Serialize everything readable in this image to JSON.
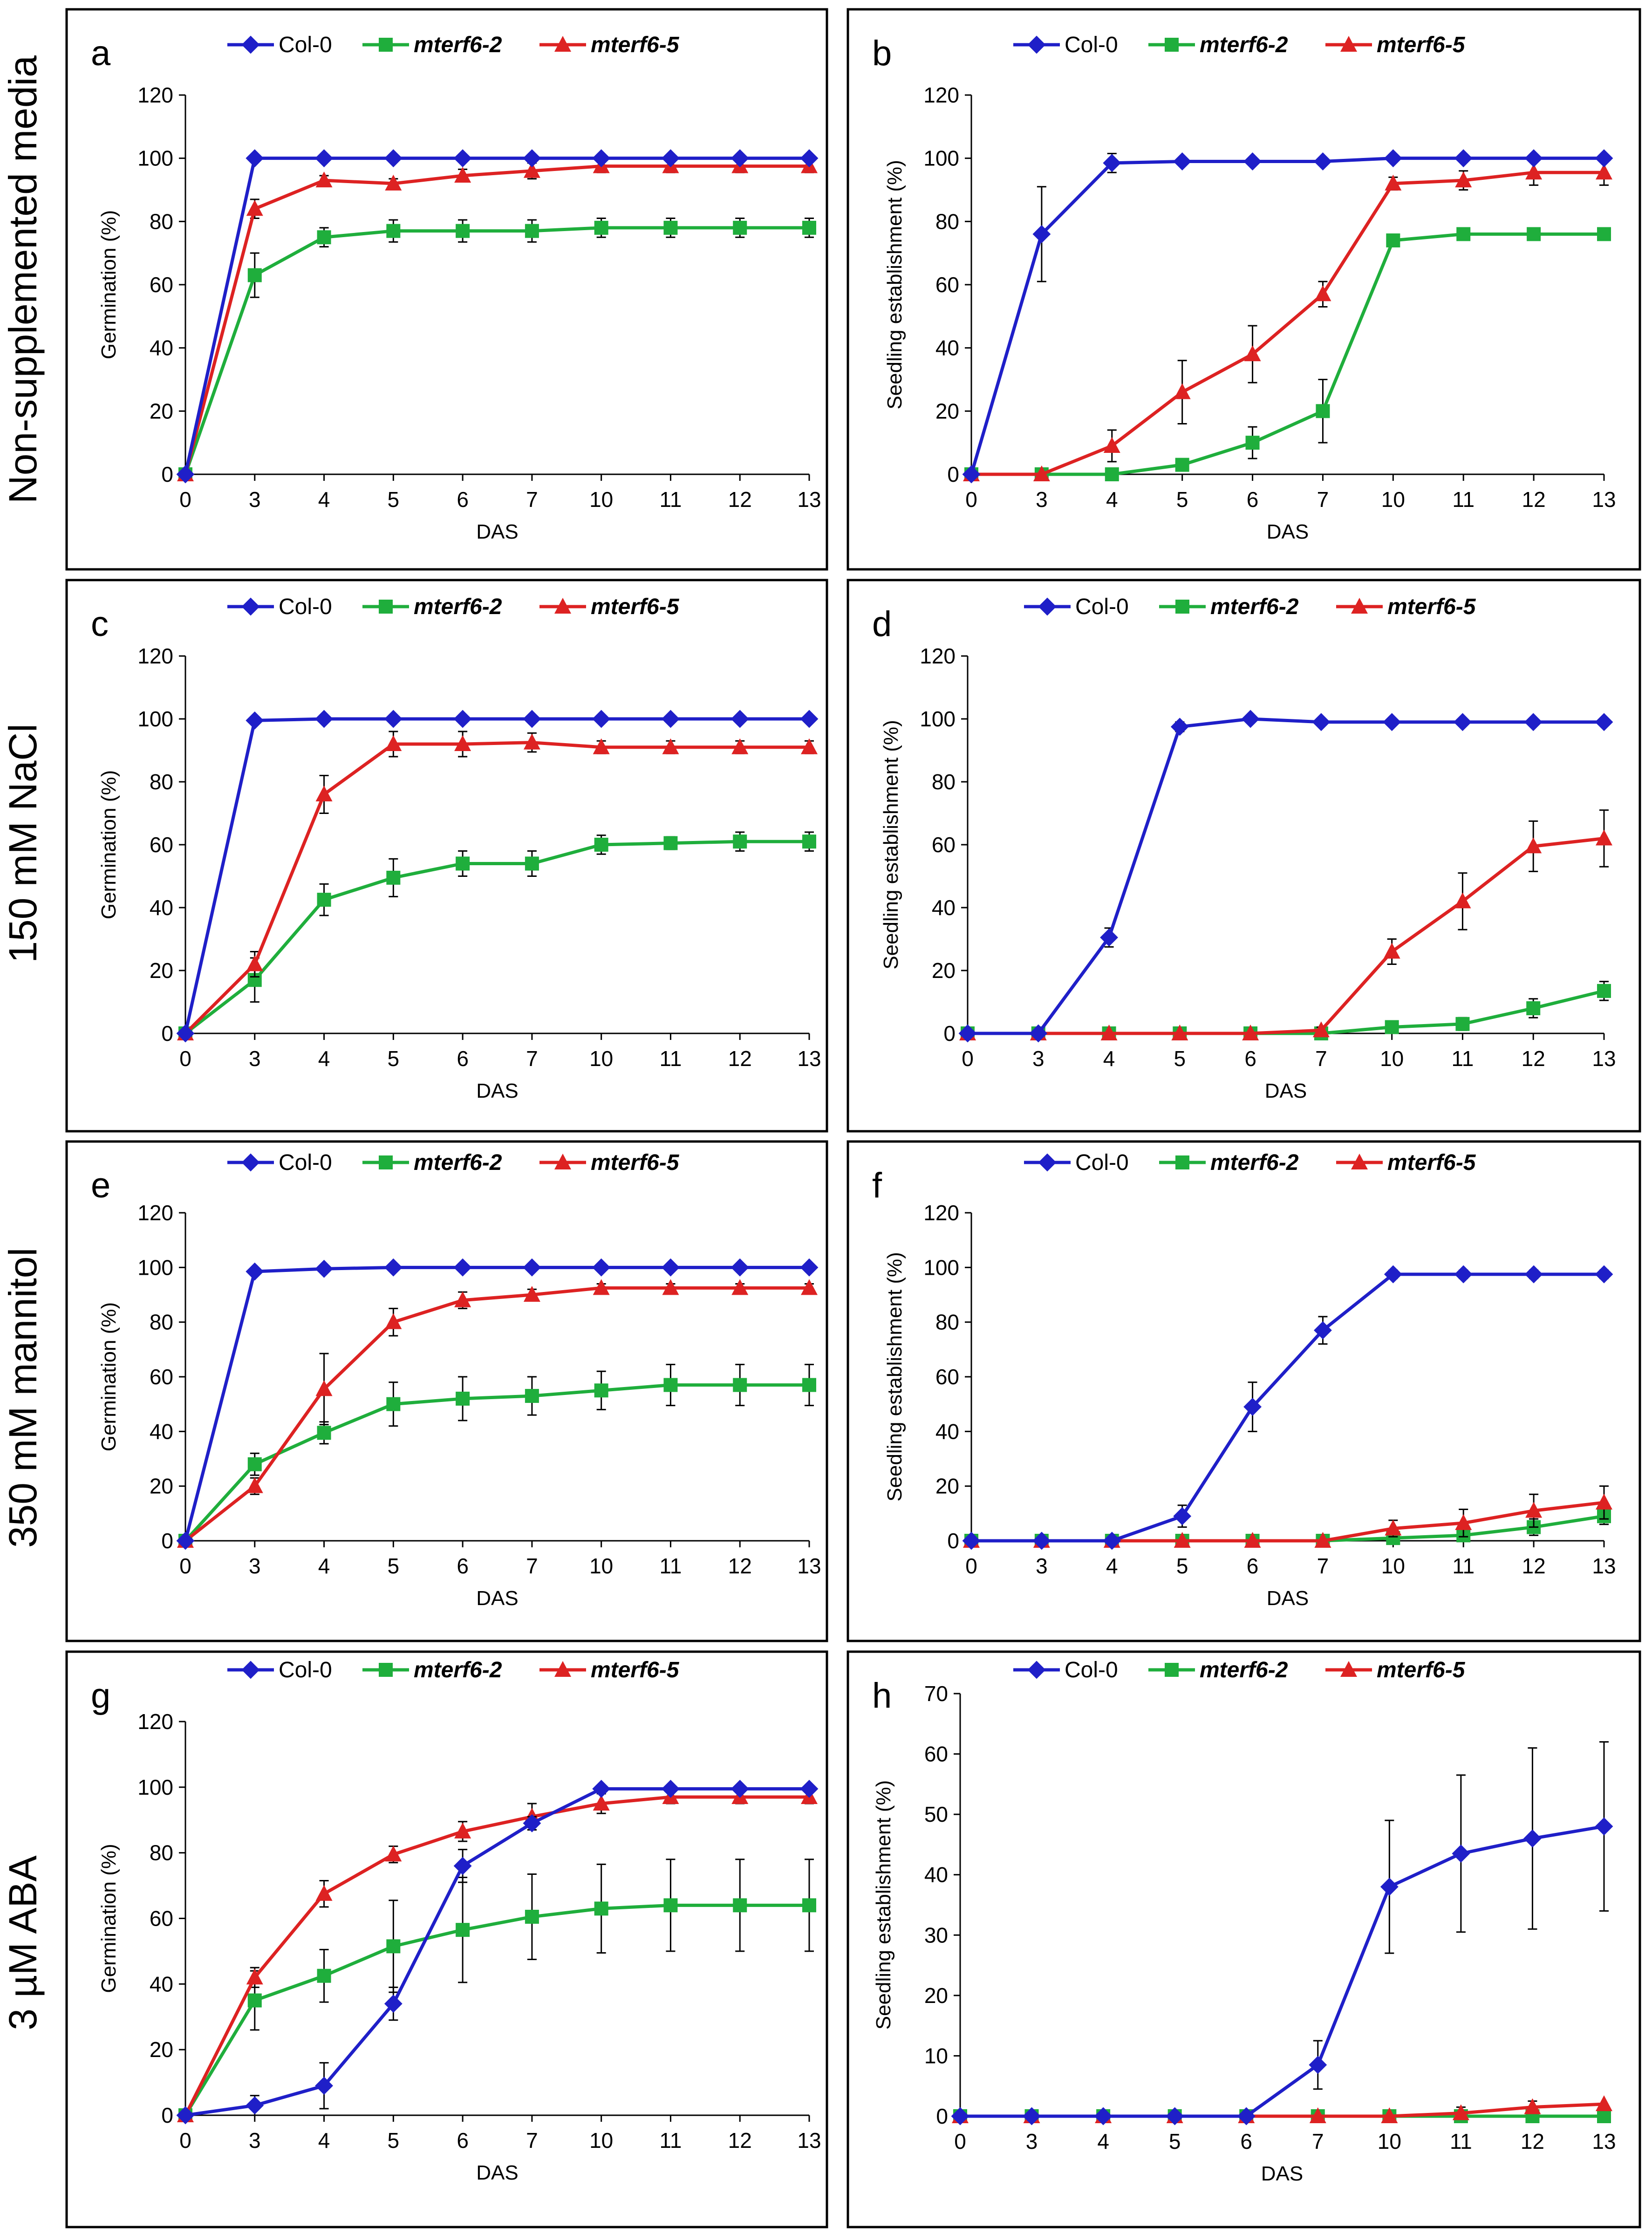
{
  "row_labels": [
    "Non-supplemented media",
    "150 mM NaCl",
    "350 mM mannitol",
    "3 µM ABA"
  ],
  "legend": [
    {
      "name": "Col-0",
      "color": "#1f1fc8",
      "marker": "diamond",
      "italic": false
    },
    {
      "name": "mterf6-2",
      "color": "#1fae3c",
      "marker": "square",
      "italic": true
    },
    {
      "name": "mterf6-5",
      "color": "#dd2222",
      "marker": "triangle",
      "italic": true
    }
  ],
  "chart_data": [
    {
      "panel": "a",
      "type": "line",
      "xlabel": "DAS",
      "ylabel": "Germination (%)",
      "categories": [
        "0",
        "3",
        "4",
        "5",
        "6",
        "7",
        "10",
        "11",
        "12",
        "13"
      ],
      "ylim": [
        0,
        120
      ],
      "yticks": [
        0,
        20,
        40,
        60,
        80,
        100,
        120
      ],
      "series": [
        {
          "name": "Col-0",
          "values": [
            0,
            100,
            100,
            100,
            100,
            100,
            100,
            100,
            100,
            100
          ],
          "errors": [
            0,
            0,
            0,
            0,
            0,
            0,
            0,
            0,
            0,
            0
          ]
        },
        {
          "name": "mterf6-2",
          "values": [
            0,
            63,
            75,
            77,
            77,
            77,
            78,
            78,
            78,
            78
          ],
          "errors": [
            0,
            7,
            3,
            3.5,
            3.5,
            3.5,
            3,
            3,
            3,
            3
          ]
        },
        {
          "name": "mterf6-5",
          "values": [
            0,
            84,
            93,
            92,
            94.5,
            96,
            97.5,
            97.5,
            97.5,
            97.5
          ],
          "errors": [
            0,
            3,
            1.5,
            1.5,
            2,
            2.5,
            2,
            2,
            2,
            2
          ]
        }
      ]
    },
    {
      "panel": "b",
      "type": "line",
      "xlabel": "DAS",
      "ylabel": "Seedling establishment (%)",
      "categories": [
        "0",
        "3",
        "4",
        "5",
        "6",
        "7",
        "10",
        "11",
        "12",
        "13"
      ],
      "ylim": [
        0,
        120
      ],
      "yticks": [
        0,
        20,
        40,
        60,
        80,
        100,
        120
      ],
      "series": [
        {
          "name": "Col-0",
          "values": [
            0,
            76,
            98.5,
            99,
            99,
            99,
            100,
            100,
            100,
            100
          ],
          "errors": [
            0,
            15,
            3,
            0,
            0,
            0,
            0,
            0,
            0,
            0
          ]
        },
        {
          "name": "mterf6-2",
          "values": [
            0,
            0,
            0,
            3,
            10,
            20,
            74,
            76,
            76,
            76
          ],
          "errors": [
            0,
            0,
            0,
            0,
            5,
            10,
            0,
            0,
            0,
            0
          ]
        },
        {
          "name": "mterf6-5",
          "values": [
            0,
            0,
            9,
            26,
            38,
            57,
            92,
            93,
            95.5,
            95.5
          ],
          "errors": [
            0,
            0,
            5,
            10,
            9,
            4,
            2,
            3,
            4,
            4
          ]
        }
      ]
    },
    {
      "panel": "c",
      "type": "line",
      "xlabel": "DAS",
      "ylabel": "Germination (%)",
      "categories": [
        "0",
        "3",
        "4",
        "5",
        "6",
        "7",
        "10",
        "11",
        "12",
        "13"
      ],
      "ylim": [
        0,
        120
      ],
      "yticks": [
        0,
        20,
        40,
        60,
        80,
        100,
        120
      ],
      "series": [
        {
          "name": "Col-0",
          "values": [
            0,
            99.5,
            100,
            100,
            100,
            100,
            100,
            100,
            100,
            100
          ],
          "errors": [
            0,
            0,
            0,
            0,
            0,
            0,
            0,
            0,
            0,
            0
          ]
        },
        {
          "name": "mterf6-2",
          "values": [
            0,
            17,
            42.5,
            49.5,
            54,
            54,
            60,
            60.5,
            61,
            61
          ],
          "errors": [
            0,
            7,
            5,
            6,
            4,
            4,
            3,
            2,
            3,
            3
          ]
        },
        {
          "name": "mterf6-5",
          "values": [
            0,
            22,
            76,
            92,
            92,
            92.5,
            91,
            91,
            91,
            91
          ],
          "errors": [
            0,
            4,
            6,
            4,
            4,
            3,
            2,
            2,
            2,
            2
          ]
        }
      ]
    },
    {
      "panel": "d",
      "type": "line",
      "xlabel": "DAS",
      "ylabel": "Seedling establishment (%)",
      "categories": [
        "0",
        "3",
        "4",
        "5",
        "6",
        "7",
        "10",
        "11",
        "12",
        "13"
      ],
      "ylim": [
        0,
        120
      ],
      "yticks": [
        0,
        20,
        40,
        60,
        80,
        100,
        120
      ],
      "series": [
        {
          "name": "Col-0",
          "values": [
            0,
            0,
            30.5,
            97.5,
            100,
            99,
            99,
            99,
            99,
            99
          ],
          "errors": [
            0,
            0,
            3,
            1.5,
            0,
            0,
            0,
            0,
            0,
            0
          ]
        },
        {
          "name": "mterf6-2",
          "values": [
            0,
            0,
            0,
            0,
            0,
            0,
            2,
            3,
            8,
            13.5
          ],
          "errors": [
            0,
            0,
            0,
            0,
            0,
            0,
            2,
            2,
            3,
            3
          ]
        },
        {
          "name": "mterf6-5",
          "values": [
            0,
            0,
            0,
            0,
            0,
            1,
            26,
            42,
            59.5,
            62
          ],
          "errors": [
            0,
            0,
            0,
            0,
            0,
            1,
            4,
            9,
            8,
            9
          ]
        }
      ]
    },
    {
      "panel": "e",
      "type": "line",
      "xlabel": "DAS",
      "ylabel": "Germination (%)",
      "categories": [
        "0",
        "3",
        "4",
        "5",
        "6",
        "7",
        "10",
        "11",
        "12",
        "13"
      ],
      "ylim": [
        0,
        120
      ],
      "yticks": [
        0,
        20,
        40,
        60,
        80,
        100,
        120
      ],
      "series": [
        {
          "name": "Col-0",
          "values": [
            0,
            98.5,
            99.5,
            100,
            100,
            100,
            100,
            100,
            100,
            100
          ],
          "errors": [
            0,
            0,
            0,
            0,
            0,
            0,
            0,
            0,
            0,
            0
          ]
        },
        {
          "name": "mterf6-2",
          "values": [
            0,
            28,
            39.5,
            50,
            52,
            53,
            55,
            57,
            57,
            57
          ],
          "errors": [
            0,
            4,
            4,
            8,
            8,
            7,
            7,
            7.5,
            7.5,
            7.5
          ]
        },
        {
          "name": "mterf6-5",
          "values": [
            0,
            20,
            55.5,
            80,
            88,
            90,
            92.5,
            92.5,
            92.5,
            92.5
          ],
          "errors": [
            0,
            3,
            13,
            5,
            3,
            2,
            1.5,
            1.5,
            1.5,
            1.5
          ]
        }
      ]
    },
    {
      "panel": "f",
      "type": "line",
      "xlabel": "DAS",
      "ylabel": "Seedling establishment (%)",
      "categories": [
        "0",
        "3",
        "4",
        "5",
        "6",
        "7",
        "10",
        "11",
        "12",
        "13"
      ],
      "ylim": [
        0,
        120
      ],
      "yticks": [
        0,
        20,
        40,
        60,
        80,
        100,
        120
      ],
      "series": [
        {
          "name": "Col-0",
          "values": [
            0,
            0,
            0,
            9,
            49,
            77,
            97.5,
            97.5,
            97.5,
            97.5
          ],
          "errors": [
            0,
            0,
            0,
            4,
            9,
            5,
            1.5,
            1.5,
            1.5,
            1.5
          ]
        },
        {
          "name": "mterf6-2",
          "values": [
            0,
            0,
            0,
            0,
            0,
            0,
            1,
            2,
            5,
            9
          ],
          "errors": [
            0,
            0,
            0,
            0,
            0,
            0,
            2,
            2,
            3,
            3
          ]
        },
        {
          "name": "mterf6-5",
          "values": [
            0,
            0,
            0,
            0,
            0,
            0,
            4.5,
            6.5,
            11,
            14
          ],
          "errors": [
            0,
            0,
            0,
            0,
            0,
            0,
            3,
            5,
            6,
            6
          ]
        }
      ]
    },
    {
      "panel": "g",
      "type": "line",
      "xlabel": "DAS",
      "ylabel": "Germination (%)",
      "categories": [
        "0",
        "3",
        "4",
        "5",
        "6",
        "7",
        "10",
        "11",
        "12",
        "13"
      ],
      "ylim": [
        0,
        120
      ],
      "yticks": [
        0,
        20,
        40,
        60,
        80,
        100,
        120
      ],
      "series": [
        {
          "name": "Col-0",
          "values": [
            0,
            3,
            9,
            34,
            76,
            89,
            99.5,
            99.5,
            99.5,
            99.5
          ],
          "errors": [
            0,
            3,
            7,
            5,
            5,
            2,
            0,
            0,
            0,
            0
          ]
        },
        {
          "name": "mterf6-2",
          "values": [
            0,
            35,
            42.5,
            51.5,
            56.5,
            60.5,
            63,
            64,
            64,
            64
          ],
          "errors": [
            0,
            9,
            8,
            14,
            16,
            13,
            13.5,
            14,
            14,
            14
          ]
        },
        {
          "name": "mterf6-5",
          "values": [
            0,
            42,
            67.5,
            79.5,
            86.5,
            91,
            95,
            97,
            97,
            97
          ],
          "errors": [
            0,
            3,
            4,
            2.5,
            3,
            4,
            3,
            2,
            2,
            2
          ]
        }
      ]
    },
    {
      "panel": "h",
      "type": "line",
      "xlabel": "DAS",
      "ylabel": "Seedling establishment (%)",
      "categories": [
        "0",
        "3",
        "4",
        "5",
        "6",
        "7",
        "10",
        "11",
        "12",
        "13"
      ],
      "ylim": [
        0,
        70
      ],
      "yticks": [
        0,
        10,
        20,
        30,
        40,
        50,
        60,
        70
      ],
      "series": [
        {
          "name": "Col-0",
          "values": [
            0,
            0,
            0,
            0,
            0,
            8.5,
            38,
            43.5,
            46,
            48
          ],
          "errors": [
            0,
            0,
            0,
            0,
            0,
            4,
            11,
            13,
            15,
            14
          ]
        },
        {
          "name": "mterf6-2",
          "values": [
            0,
            0,
            0,
            0,
            0,
            0,
            0,
            0,
            0,
            0
          ],
          "errors": [
            0,
            0,
            0,
            0,
            0,
            0,
            0,
            0,
            0,
            0
          ]
        },
        {
          "name": "mterf6-5",
          "values": [
            0,
            0,
            0,
            0,
            0,
            0,
            0,
            0.5,
            1.5,
            2
          ],
          "errors": [
            0,
            0,
            0,
            0,
            0,
            0,
            0,
            1,
            1,
            0
          ]
        }
      ]
    }
  ]
}
